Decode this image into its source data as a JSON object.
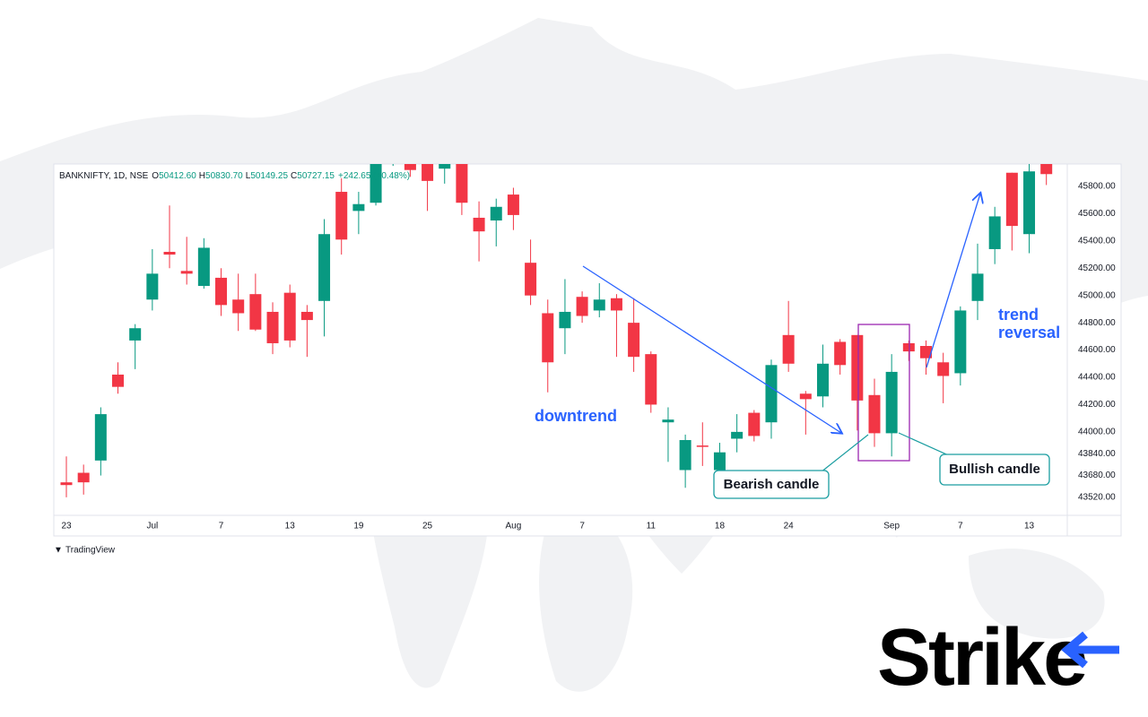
{
  "chart_data": {
    "type": "candlestick",
    "header": {
      "symbol": "BANKNIFTY, 1D, NSE",
      "ohlc": [
        {
          "label": "O",
          "value": "50412.60"
        },
        {
          "label": "H",
          "value": "50830.70"
        },
        {
          "label": "L",
          "value": "50149.25"
        },
        {
          "label": "C",
          "value": "50727.15"
        }
      ],
      "change": "+242.65 (+0.48%)"
    },
    "categories": [
      "23",
      null,
      null,
      null,
      null,
      "Jul",
      null,
      null,
      null,
      "7",
      null,
      null,
      null,
      "13",
      null,
      null,
      null,
      "19",
      null,
      null,
      null,
      "25",
      null,
      null,
      null,
      null,
      "Aug",
      null,
      null,
      null,
      "7",
      null,
      null,
      null,
      "11",
      null,
      null,
      null,
      "18",
      null,
      null,
      null,
      "24",
      null,
      null,
      null,
      null,
      null,
      "Sep",
      null,
      null,
      null,
      "7",
      null,
      null,
      null,
      "13",
      null
    ],
    "open": [
      43630,
      43700,
      43790,
      44420,
      44670,
      44970,
      45320,
      45180,
      45070,
      45130,
      44970,
      45010,
      44880,
      45020,
      44880,
      44960,
      45760,
      45620,
      45680,
      46020,
      46000,
      46010,
      45930,
      46010,
      45570,
      45550,
      45740,
      45240,
      44870,
      44760,
      44990,
      44890,
      44980,
      44800,
      44570,
      44070,
      43720,
      43900,
      43720,
      43950,
      44140,
      44070,
      44710,
      44280,
      44260,
      44660,
      44710,
      44270,
      43990,
      44650,
      44630,
      44510,
      44430,
      44960,
      45340,
      45900,
      45450,
      45970
    ],
    "high": [
      43820,
      43760,
      44180,
      44510,
      44790,
      45340,
      45660,
      45430,
      45420,
      45200,
      45160,
      45160,
      44950,
      45080,
      44930,
      45560,
      45860,
      45760,
      46040,
      46200,
      46080,
      46080,
      46060,
      46060,
      45690,
      45710,
      45790,
      45410,
      44970,
      45120,
      45030,
      45090,
      45010,
      44980,
      44590,
      44180,
      43980,
      44070,
      43920,
      44130,
      44160,
      44530,
      44960,
      44300,
      44640,
      44680,
      44710,
      44390,
      44570,
      44670,
      44670,
      44580,
      44920,
      45380,
      45650,
      45900,
      45970,
      46040
    ],
    "low": [
      43520,
      43540,
      43680,
      44280,
      44460,
      44890,
      45200,
      45080,
      45050,
      44850,
      44740,
      44740,
      44570,
      44620,
      44550,
      44700,
      45300,
      45450,
      45660,
      45950,
      45870,
      45620,
      45820,
      45590,
      45250,
      45360,
      45480,
      44930,
      44290,
      44570,
      44800,
      44840,
      44550,
      44440,
      44140,
      43780,
      43590,
      43750,
      43680,
      43850,
      43930,
      43950,
      44440,
      43980,
      44180,
      44420,
      44010,
      43890,
      43820,
      44520,
      44420,
      44210,
      44340,
      44820,
      45230,
      45330,
      45310,
      45810
    ],
    "close": [
      43610,
      43630,
      44130,
      44330,
      44760,
      45160,
      45300,
      45160,
      45350,
      44930,
      44870,
      44750,
      44650,
      44670,
      44820,
      45450,
      45410,
      45670,
      46000,
      46150,
      45920,
      45840,
      46000,
      45680,
      45470,
      45650,
      45590,
      45000,
      44510,
      44880,
      44850,
      44970,
      44890,
      44550,
      44200,
      44090,
      43940,
      43890,
      43850,
      44000,
      43970,
      44490,
      44500,
      44240,
      44500,
      44490,
      44230,
      43990,
      44440,
      44590,
      44540,
      44410,
      44890,
      45160,
      45580,
      45510,
      45910,
      45890
    ],
    "up_color": "#089981",
    "down_color": "#f23645",
    "ylim": [
      43388,
      45964
    ],
    "yticks": [
      {
        "value": 43520,
        "label": "43520.00"
      },
      {
        "value": 43680,
        "label": "43680.00"
      },
      {
        "value": 43840,
        "label": "43840.00"
      },
      {
        "value": 44000,
        "label": "44000.00"
      },
      {
        "value": 44200,
        "label": "44200.00"
      },
      {
        "value": 44400,
        "label": "44400.00"
      },
      {
        "value": 44600,
        "label": "44600.00"
      },
      {
        "value": 44800,
        "label": "44800.00"
      },
      {
        "value": 45000,
        "label": "45000.00"
      },
      {
        "value": 45200,
        "label": "45200.00"
      },
      {
        "value": 45400,
        "label": "45400.00"
      },
      {
        "value": 45600,
        "label": "45600.00"
      },
      {
        "value": 45800,
        "label": "45800.00"
      }
    ],
    "grid": false,
    "annotations": {
      "downtrend": "downtrend",
      "trend_reversal": [
        "trend",
        "reversal"
      ],
      "bearish": "Bearish candle",
      "bullish": "Bullish candle"
    },
    "branding": {
      "platform": "TradingView",
      "logo": "Strike"
    }
  }
}
